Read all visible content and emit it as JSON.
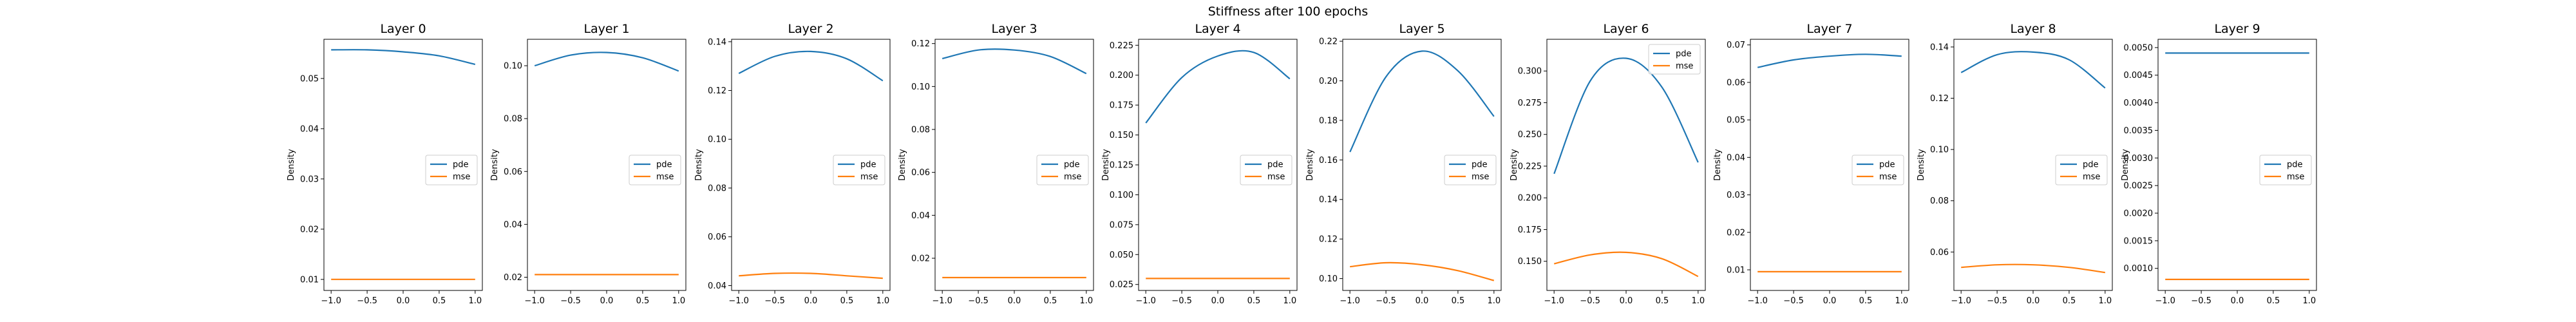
{
  "figure": {
    "title": "Stiffness after 100 epochs",
    "colors": {
      "pde": "#1f77b4",
      "mse": "#ff7f0e"
    }
  },
  "chart_data": [
    {
      "type": "line",
      "title": "Layer 0",
      "xlabel": "",
      "ylabel": "Density",
      "xlim": [
        -1.1,
        1.1
      ],
      "ylim": [
        0.0078,
        0.0578
      ],
      "xticks": [
        -1.0,
        -0.5,
        0.0,
        0.5,
        1.0
      ],
      "xtick_labels": [
        "−1.0",
        "−0.5",
        "0.0",
        "0.5",
        "1.0"
      ],
      "yticks": [
        0.01,
        0.02,
        0.03,
        0.04,
        0.05
      ],
      "ytick_labels": [
        "0.01",
        "0.02",
        "0.03",
        "0.04",
        "0.05"
      ],
      "legend": {
        "position": "center right",
        "entries": [
          "pde",
          "mse"
        ]
      },
      "x": [
        -1.0,
        -0.5,
        0.0,
        0.5,
        1.0
      ],
      "series": [
        {
          "name": "pde",
          "values": [
            0.0557,
            0.0557,
            0.0553,
            0.0545,
            0.0528
          ]
        },
        {
          "name": "mse",
          "values": [
            0.01,
            0.01,
            0.01,
            0.01,
            0.01
          ]
        }
      ]
    },
    {
      "type": "line",
      "title": "Layer 1",
      "xlabel": "",
      "ylabel": "Density",
      "xlim": [
        -1.1,
        1.1
      ],
      "ylim": [
        0.015,
        0.11
      ],
      "xticks": [
        -1.0,
        -0.5,
        0.0,
        0.5,
        1.0
      ],
      "xtick_labels": [
        "−1.0",
        "−0.5",
        "0.0",
        "0.5",
        "1.0"
      ],
      "yticks": [
        0.02,
        0.04,
        0.06,
        0.08,
        0.1
      ],
      "ytick_labels": [
        "0.02",
        "0.04",
        "0.06",
        "0.08",
        "0.10"
      ],
      "legend": {
        "position": "center right",
        "entries": [
          "pde",
          "mse"
        ]
      },
      "x": [
        -1.0,
        -0.5,
        0.0,
        0.5,
        1.0
      ],
      "series": [
        {
          "name": "pde",
          "values": [
            0.1,
            0.104,
            0.105,
            0.103,
            0.098
          ]
        },
        {
          "name": "mse",
          "values": [
            0.021,
            0.021,
            0.021,
            0.021,
            0.021
          ]
        }
      ]
    },
    {
      "type": "line",
      "title": "Layer 2",
      "xlabel": "",
      "ylabel": "Density",
      "xlim": [
        -1.1,
        1.1
      ],
      "ylim": [
        0.038,
        0.141
      ],
      "xticks": [
        -1.0,
        -0.5,
        0.0,
        0.5,
        1.0
      ],
      "xtick_labels": [
        "−1.0",
        "−0.5",
        "0.0",
        "0.5",
        "1.0"
      ],
      "yticks": [
        0.04,
        0.06,
        0.08,
        0.1,
        0.12,
        0.14
      ],
      "ytick_labels": [
        "0.04",
        "0.06",
        "0.08",
        "0.10",
        "0.12",
        "0.14"
      ],
      "legend": {
        "position": "center right",
        "entries": [
          "pde",
          "mse"
        ]
      },
      "x": [
        -1.0,
        -0.5,
        0.0,
        0.5,
        1.0
      ],
      "series": [
        {
          "name": "pde",
          "values": [
            0.127,
            0.134,
            0.136,
            0.133,
            0.124
          ]
        },
        {
          "name": "mse",
          "values": [
            0.044,
            0.045,
            0.045,
            0.044,
            0.043
          ]
        }
      ]
    },
    {
      "type": "line",
      "title": "Layer 3",
      "xlabel": "",
      "ylabel": "Density",
      "xlim": [
        -1.1,
        1.1
      ],
      "ylim": [
        0.005,
        0.122
      ],
      "xticks": [
        -1.0,
        -0.5,
        0.0,
        0.5,
        1.0
      ],
      "xtick_labels": [
        "−1.0",
        "−0.5",
        "0.0",
        "0.5",
        "1.0"
      ],
      "yticks": [
        0.02,
        0.04,
        0.06,
        0.08,
        0.1,
        0.12
      ],
      "ytick_labels": [
        "0.02",
        "0.04",
        "0.06",
        "0.08",
        "0.10",
        "0.12"
      ],
      "legend": {
        "position": "center right",
        "entries": [
          "pde",
          "mse"
        ]
      },
      "x": [
        -1.0,
        -0.5,
        0.0,
        0.5,
        1.0
      ],
      "series": [
        {
          "name": "pde",
          "values": [
            0.113,
            0.117,
            0.117,
            0.114,
            0.106
          ]
        },
        {
          "name": "mse",
          "values": [
            0.011,
            0.011,
            0.011,
            0.011,
            0.011
          ]
        }
      ]
    },
    {
      "type": "line",
      "title": "Layer 4",
      "xlabel": "",
      "ylabel": "Density",
      "xlim": [
        -1.1,
        1.1
      ],
      "ylim": [
        0.02,
        0.23
      ],
      "xticks": [
        -1.0,
        -0.5,
        0.0,
        0.5,
        1.0
      ],
      "xtick_labels": [
        "−1.0",
        "−0.5",
        "0.0",
        "0.5",
        "1.0"
      ],
      "yticks": [
        0.025,
        0.05,
        0.075,
        0.1,
        0.125,
        0.15,
        0.175,
        0.2,
        0.225
      ],
      "ytick_labels": [
        "0.025",
        "0.050",
        "0.075",
        "0.100",
        "0.125",
        "0.150",
        "0.175",
        "0.200",
        "0.225"
      ],
      "legend": {
        "position": "center right",
        "entries": [
          "pde",
          "mse"
        ]
      },
      "x": [
        -1.0,
        -0.5,
        0.0,
        0.5,
        1.0
      ],
      "series": [
        {
          "name": "pde",
          "values": [
            0.16,
            0.198,
            0.216,
            0.219,
            0.197
          ]
        },
        {
          "name": "mse",
          "values": [
            0.03,
            0.03,
            0.03,
            0.03,
            0.03
          ]
        }
      ]
    },
    {
      "type": "line",
      "title": "Layer 5",
      "xlabel": "",
      "ylabel": "Density",
      "xlim": [
        -1.1,
        1.1
      ],
      "ylim": [
        0.094,
        0.221
      ],
      "xticks": [
        -1.0,
        -0.5,
        0.0,
        0.5,
        1.0
      ],
      "xtick_labels": [
        "−1.0",
        "−0.5",
        "0.0",
        "0.5",
        "1.0"
      ],
      "yticks": [
        0.1,
        0.12,
        0.14,
        0.16,
        0.18,
        0.2,
        0.22
      ],
      "ytick_labels": [
        "0.10",
        "0.12",
        "0.14",
        "0.16",
        "0.18",
        "0.20",
        "0.22"
      ],
      "legend": {
        "position": "center right",
        "entries": [
          "pde",
          "mse"
        ]
      },
      "x": [
        -1.0,
        -0.5,
        0.0,
        0.5,
        1.0
      ],
      "series": [
        {
          "name": "pde",
          "values": [
            0.164,
            0.202,
            0.215,
            0.205,
            0.182
          ]
        },
        {
          "name": "mse",
          "values": [
            0.106,
            0.108,
            0.107,
            0.104,
            0.099
          ]
        }
      ]
    },
    {
      "type": "line",
      "title": "Layer 6",
      "xlabel": "",
      "ylabel": "Density",
      "xlim": [
        -1.1,
        1.1
      ],
      "ylim": [
        0.127,
        0.325
      ],
      "xticks": [
        -1.0,
        -0.5,
        0.0,
        0.5,
        1.0
      ],
      "xtick_labels": [
        "−1.0",
        "−0.5",
        "0.0",
        "0.5",
        "1.0"
      ],
      "yticks": [
        0.15,
        0.175,
        0.2,
        0.225,
        0.25,
        0.275,
        0.3
      ],
      "ytick_labels": [
        "0.150",
        "0.175",
        "0.200",
        "0.225",
        "0.250",
        "0.275",
        "0.300"
      ],
      "legend": {
        "position": "upper right",
        "entries": [
          "pde",
          "mse"
        ]
      },
      "x": [
        -1.0,
        -0.5,
        0.0,
        0.5,
        1.0
      ],
      "series": [
        {
          "name": "pde",
          "values": [
            0.219,
            0.292,
            0.31,
            0.287,
            0.228
          ]
        },
        {
          "name": "mse",
          "values": [
            0.148,
            0.155,
            0.157,
            0.152,
            0.138
          ]
        }
      ]
    },
    {
      "type": "line",
      "title": "Layer 7",
      "xlabel": "",
      "ylabel": "Density",
      "xlim": [
        -1.1,
        1.1
      ],
      "ylim": [
        0.0045,
        0.0715
      ],
      "xticks": [
        -1.0,
        -0.5,
        0.0,
        0.5,
        1.0
      ],
      "xtick_labels": [
        "−1.0",
        "−0.5",
        "0.0",
        "0.5",
        "1.0"
      ],
      "yticks": [
        0.01,
        0.02,
        0.03,
        0.04,
        0.05,
        0.06,
        0.07
      ],
      "ytick_labels": [
        "0.01",
        "0.02",
        "0.03",
        "0.04",
        "0.05",
        "0.06",
        "0.07"
      ],
      "legend": {
        "position": "center right",
        "entries": [
          "pde",
          "mse"
        ]
      },
      "x": [
        -1.0,
        -0.5,
        0.0,
        0.5,
        1.0
      ],
      "series": [
        {
          "name": "pde",
          "values": [
            0.064,
            0.066,
            0.067,
            0.0675,
            0.067
          ]
        },
        {
          "name": "mse",
          "values": [
            0.0095,
            0.0095,
            0.0095,
            0.0095,
            0.0095
          ]
        }
      ]
    },
    {
      "type": "line",
      "title": "Layer 8",
      "xlabel": "",
      "ylabel": "Density",
      "xlim": [
        -1.1,
        1.1
      ],
      "ylim": [
        0.045,
        0.143
      ],
      "xticks": [
        -1.0,
        -0.5,
        0.0,
        0.5,
        1.0
      ],
      "xtick_labels": [
        "−1.0",
        "−0.5",
        "0.0",
        "0.5",
        "1.0"
      ],
      "yticks": [
        0.06,
        0.08,
        0.1,
        0.12,
        0.14
      ],
      "ytick_labels": [
        "0.06",
        "0.08",
        "0.10",
        "0.12",
        "0.14"
      ],
      "legend": {
        "position": "center right",
        "entries": [
          "pde",
          "mse"
        ]
      },
      "x": [
        -1.0,
        -0.5,
        0.0,
        0.5,
        1.0
      ],
      "series": [
        {
          "name": "pde",
          "values": [
            0.13,
            0.137,
            0.138,
            0.135,
            0.124
          ]
        },
        {
          "name": "mse",
          "values": [
            0.054,
            0.055,
            0.055,
            0.054,
            0.052
          ]
        }
      ]
    },
    {
      "type": "line",
      "title": "Layer 9",
      "xlabel": "",
      "ylabel": "Density",
      "xlim": [
        -1.1,
        1.1
      ],
      "ylim": [
        0.0006,
        0.00515
      ],
      "xticks": [
        -1.0,
        -0.5,
        0.0,
        0.5,
        1.0
      ],
      "xtick_labels": [
        "−1.0",
        "−0.5",
        "0.0",
        "0.5",
        "1.0"
      ],
      "yticks": [
        0.001,
        0.0015,
        0.002,
        0.0025,
        0.003,
        0.0035,
        0.004,
        0.0045,
        0.005
      ],
      "ytick_labels": [
        "0.0010",
        "0.0015",
        "0.0020",
        "0.0025",
        "0.0030",
        "0.0035",
        "0.0040",
        "0.0045",
        "0.0050"
      ],
      "legend": {
        "position": "center right",
        "entries": [
          "pde",
          "mse"
        ]
      },
      "x": [
        -1.0,
        -0.5,
        0.0,
        0.5,
        1.0
      ],
      "series": [
        {
          "name": "pde",
          "values": [
            0.0049,
            0.0049,
            0.0049,
            0.0049,
            0.0049
          ]
        },
        {
          "name": "mse",
          "values": [
            0.0008,
            0.0008,
            0.0008,
            0.0008,
            0.0008
          ]
        }
      ]
    }
  ]
}
